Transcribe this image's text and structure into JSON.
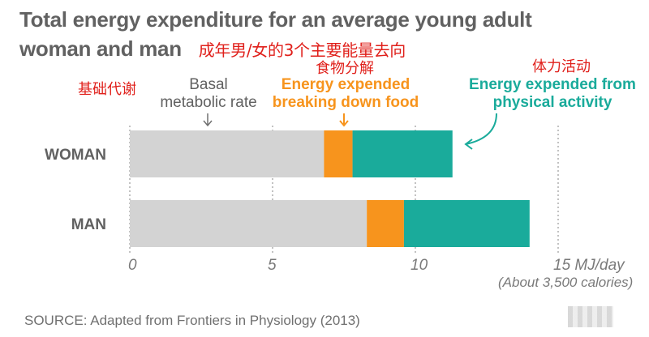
{
  "title_line1": "Total energy expenditure for an average young adult",
  "title_line2": "woman and man",
  "cn_subtitle": "成年男/女的3个主要能量去向",
  "annotations": {
    "basal_cn": "基础代谢",
    "basal_line1": "Basal",
    "basal_line2": "metabolic rate",
    "food_cn": "食物分解",
    "food_line1": "Energy expended",
    "food_line2": "breaking down food",
    "activity_cn": "体力活动",
    "activity_line1": "Energy expended from",
    "activity_line2": "physical activity"
  },
  "source": "SOURCE: Adapted from Frontiers in Physiology (2013)",
  "colors": {
    "basal": "#d3d3d3",
    "food": "#f7941d",
    "activity": "#1aab9b",
    "axis": "#9a9a9a",
    "label": "#616161"
  },
  "chart_data": {
    "type": "bar",
    "orientation": "horizontal",
    "stacked": true,
    "categories": [
      "WOMAN",
      "MAN"
    ],
    "series": [
      {
        "name": "Basal metabolic rate",
        "values": [
          6.8,
          8.3
        ]
      },
      {
        "name": "Energy expended breaking down food",
        "values": [
          1.0,
          1.3
        ]
      },
      {
        "name": "Energy expended from physical activity",
        "values": [
          3.5,
          4.4
        ]
      }
    ],
    "x_ticks": [
      "0",
      "5",
      "10",
      "15 MJ/day"
    ],
    "x_tick_values": [
      0,
      5,
      10,
      15
    ],
    "x_unit_note": "(About 3,500 calories)",
    "xlim": [
      0,
      15
    ],
    "grid": true
  }
}
